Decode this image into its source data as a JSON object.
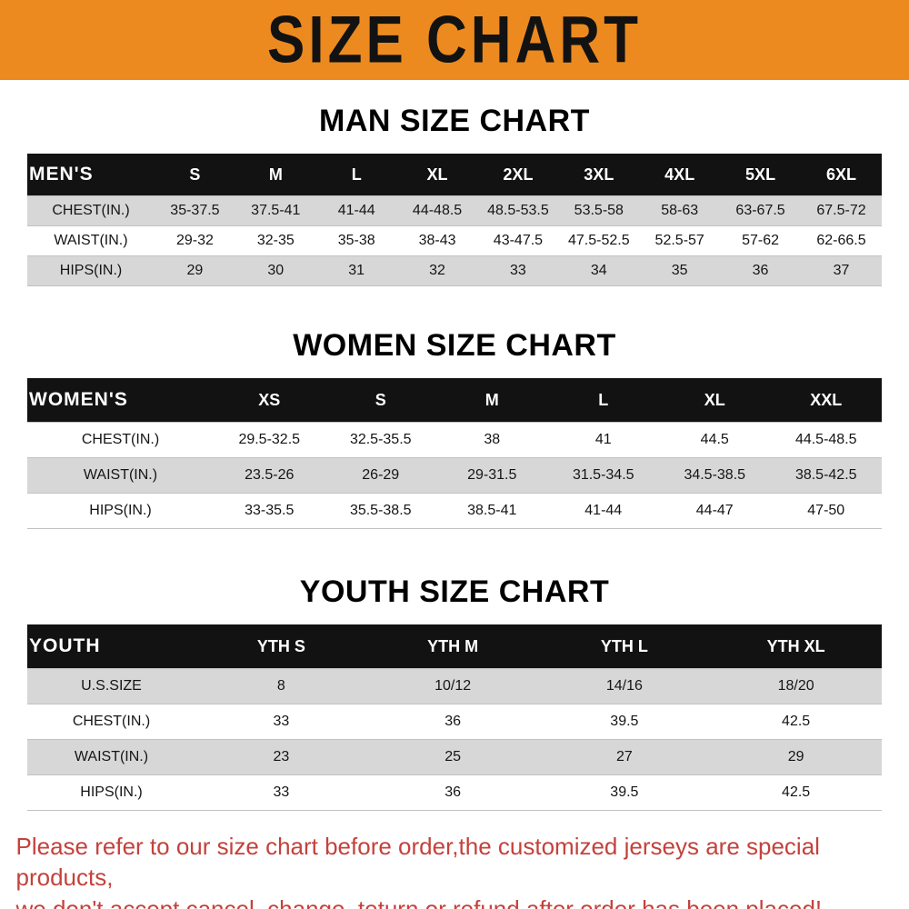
{
  "banner": {
    "title": "SIZE CHART"
  },
  "colors": {
    "banner_bg": "#EC8A1F",
    "table_header_bg": "#121212",
    "table_header_text": "#ffffff",
    "row_gray": "#d7d7d7",
    "row_white": "#ffffff",
    "footer_text": "#C4423C"
  },
  "sections": [
    {
      "heading": "MAN SIZE CHART",
      "table": {
        "label": "MEN'S",
        "columns": [
          "S",
          "M",
          "L",
          "XL",
          "2XL",
          "3XL",
          "4XL",
          "5XL",
          "6XL"
        ],
        "rows": [
          {
            "label": "CHEST(IN.)",
            "values": [
              "35-37.5",
              "37.5-41",
              "41-44",
              "44-48.5",
              "48.5-53.5",
              "53.5-58",
              "58-63",
              "63-67.5",
              "67.5-72"
            ]
          },
          {
            "label": "WAIST(IN.)",
            "values": [
              "29-32",
              "32-35",
              "35-38",
              "38-43",
              "43-47.5",
              "47.5-52.5",
              "52.5-57",
              "57-62",
              "62-66.5"
            ]
          },
          {
            "label": "HIPS(IN.)",
            "values": [
              "29",
              "30",
              "31",
              "32",
              "33",
              "34",
              "35",
              "36",
              "37"
            ]
          }
        ]
      }
    },
    {
      "heading": "WOMEN SIZE CHART",
      "table": {
        "label": "WOMEN'S",
        "columns": [
          "XS",
          "S",
          "M",
          "L",
          "XL",
          "XXL"
        ],
        "rows": [
          {
            "label": "CHEST(IN.)",
            "values": [
              "29.5-32.5",
              "32.5-35.5",
              "38",
              "41",
              "44.5",
              "44.5-48.5"
            ]
          },
          {
            "label": "WAIST(IN.)",
            "values": [
              "23.5-26",
              "26-29",
              "29-31.5",
              "31.5-34.5",
              "34.5-38.5",
              "38.5-42.5"
            ]
          },
          {
            "label": "HIPS(IN.)",
            "values": [
              "33-35.5",
              "35.5-38.5",
              "38.5-41",
              "41-44",
              "44-47",
              "47-50"
            ]
          }
        ]
      }
    },
    {
      "heading": "YOUTH SIZE CHART",
      "table": {
        "label": "YOUTH",
        "columns": [
          "YTH S",
          "YTH M",
          "YTH L",
          "YTH XL"
        ],
        "rows": [
          {
            "label": "U.S.SIZE",
            "values": [
              "8",
              "10/12",
              "14/16",
              "18/20"
            ]
          },
          {
            "label": "CHEST(IN.)",
            "values": [
              "33",
              "36",
              "39.5",
              "42.5"
            ]
          },
          {
            "label": "WAIST(IN.)",
            "values": [
              "23",
              "25",
              "27",
              "29"
            ]
          },
          {
            "label": "HIPS(IN.)",
            "values": [
              "33",
              "36",
              "39.5",
              "42.5"
            ]
          }
        ]
      }
    }
  ],
  "footer": {
    "line1": "Please refer to our size chart before order,the customized jerseys are special products,",
    "line2": "we don't accept cancel, change, teturn or refund after order has been placed!"
  }
}
